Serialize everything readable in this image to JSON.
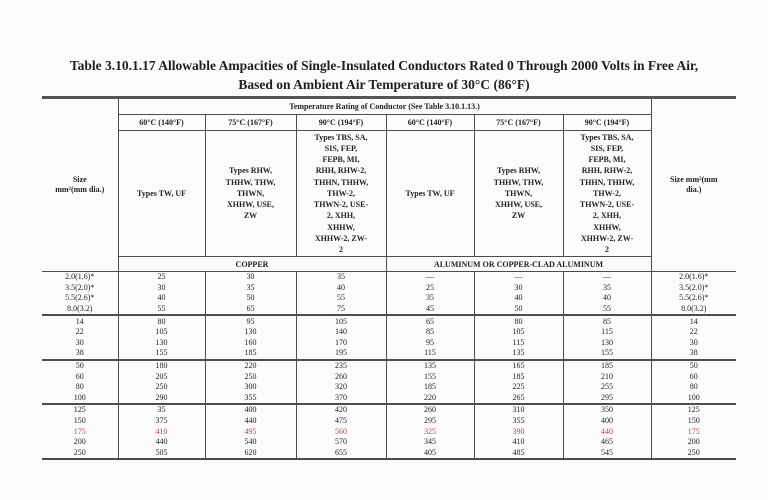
{
  "page": {
    "title": "Table 3.10.1.17 Allowable Ampacities of Single-Insulated Conductors Rated 0 Through 2000 Volts in Free Air,\nBased on Ambient Air Temperature of 30°C (86°F)"
  },
  "colors": {
    "red_row": "#c0443c",
    "rule": "#4d4d4d",
    "text": "#1f1f1f",
    "background": "#fbfbfb"
  },
  "table": {
    "temp_rating_header": "Temperature Rating of Conductor (See Table 3.10.1.13.)",
    "size_header_left": "Size\nmm²(mm dia.)",
    "size_header_right": "Size mm²(mm\ndia.)",
    "temp_cols": [
      "60°C (140°F)",
      "75°C (167°F)",
      "90°C (194°F)",
      "60°C (140°F)",
      "75°C (167°F)",
      "90°C (194°F)"
    ],
    "types": [
      "Types TW, UF",
      "Types RHW,\nTHHW, THW,\nTHWN,\nXHHW, USE,\nZW",
      "Types TBS, SA,\nSIS, FEP,\nFEPB, MI,\nRHH, RHW-2,\nTHHN, THHW,\nTHW-2,\nTHWN-2, USE-\n2, XHH,\nXHHW,\nXHHW-2, ZW-\n2",
      "Types TW, UF",
      "Types RHW,\nTHHW, THW,\nTHWN,\nXHHW, USE,\nZW",
      "Types TBS, SA,\nSIS, FEP,\nFEPB, MI,\nRHH, RHW-2,\nTHHN, THHW,\nTHW-2,\nTHWN-2, USE-\n2, XHH,\nXHHW,\nXHHW-2, ZW-\n2"
    ],
    "material_left": "COPPER",
    "material_right": "ALUMINUM OR COPPER-CLAD ALUMINUM",
    "rows": [
      {
        "size_l": "2.0(1.6)*",
        "cu": [
          "25",
          "30",
          "35"
        ],
        "al": [
          "—",
          "—",
          "—"
        ],
        "size_r": "2.0(1.6)*",
        "group_end": false,
        "red": false
      },
      {
        "size_l": "3.5(2.0)*",
        "cu": [
          "30",
          "35",
          "40"
        ],
        "al": [
          "25",
          "30",
          "35"
        ],
        "size_r": "3.5(2.0)*",
        "group_end": false,
        "red": false
      },
      {
        "size_l": "5.5(2.6)*",
        "cu": [
          "40",
          "50",
          "55"
        ],
        "al": [
          "35",
          "40",
          "40"
        ],
        "size_r": "5.5(2.6)*",
        "group_end": false,
        "red": false
      },
      {
        "size_l": "8.0(3.2)",
        "cu": [
          "55",
          "65",
          "75"
        ],
        "al": [
          "45",
          "50",
          "55"
        ],
        "size_r": "8.0(3.2)",
        "group_end": true,
        "red": false
      },
      {
        "size_l": "14",
        "cu": [
          "80",
          "95",
          "105"
        ],
        "al": [
          "65",
          "80",
          "85"
        ],
        "size_r": "14",
        "group_end": false,
        "red": false
      },
      {
        "size_l": "22",
        "cu": [
          "105",
          "130",
          "140"
        ],
        "al": [
          "85",
          "105",
          "115"
        ],
        "size_r": "22",
        "group_end": false,
        "red": false
      },
      {
        "size_l": "30",
        "cu": [
          "130",
          "160",
          "170"
        ],
        "al": [
          "95",
          "115",
          "130"
        ],
        "size_r": "30",
        "group_end": false,
        "red": false
      },
      {
        "size_l": "38",
        "cu": [
          "155",
          "185",
          "195"
        ],
        "al": [
          "115",
          "135",
          "155"
        ],
        "size_r": "38",
        "group_end": true,
        "red": false
      },
      {
        "size_l": "50",
        "cu": [
          "180",
          "220",
          "235"
        ],
        "al": [
          "135",
          "165",
          "185"
        ],
        "size_r": "50",
        "group_end": false,
        "red": false
      },
      {
        "size_l": "60",
        "cu": [
          "205",
          "250",
          "260"
        ],
        "al": [
          "155",
          "185",
          "210"
        ],
        "size_r": "60",
        "group_end": false,
        "red": false
      },
      {
        "size_l": "80",
        "cu": [
          "250",
          "300",
          "320"
        ],
        "al": [
          "185",
          "225",
          "255"
        ],
        "size_r": "80",
        "group_end": false,
        "red": false
      },
      {
        "size_l": "100",
        "cu": [
          "290",
          "355",
          "370"
        ],
        "al": [
          "220",
          "265",
          "295"
        ],
        "size_r": "100",
        "group_end": true,
        "red": false
      },
      {
        "size_l": "125",
        "cu": [
          "35",
          "400",
          "420"
        ],
        "al": [
          "260",
          "310",
          "350"
        ],
        "size_r": "125",
        "group_end": false,
        "red": false
      },
      {
        "size_l": "150",
        "cu": [
          "375",
          "440",
          "475"
        ],
        "al": [
          "295",
          "355",
          "400"
        ],
        "size_r": "150",
        "group_end": false,
        "red": false
      },
      {
        "size_l": "175",
        "cu": [
          "410",
          "495",
          "560"
        ],
        "al": [
          "325",
          "390",
          "440"
        ],
        "size_r": "175",
        "group_end": false,
        "red": true
      },
      {
        "size_l": "200",
        "cu": [
          "440",
          "540",
          "570"
        ],
        "al": [
          "345",
          "410",
          "465"
        ],
        "size_r": "200",
        "group_end": false,
        "red": false
      },
      {
        "size_l": "250",
        "cu": [
          "505",
          "620",
          "655"
        ],
        "al": [
          "405",
          "485",
          "545"
        ],
        "size_r": "250",
        "group_end": false,
        "red": false
      }
    ]
  }
}
